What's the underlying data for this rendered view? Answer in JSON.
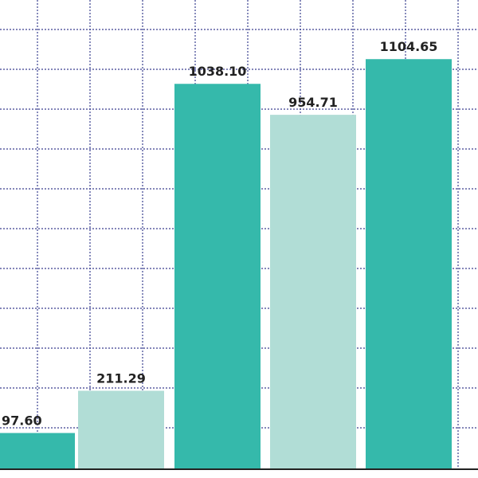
{
  "chart_data": {
    "type": "bar",
    "title": "",
    "xlabel": "",
    "ylabel": "",
    "grid": true,
    "legend": "none",
    "ylim": [
      0,
      1180
    ],
    "bars": [
      {
        "value": 97.6,
        "label": "97.60",
        "color": "#35b9ab"
      },
      {
        "value": 211.29,
        "label": "211.29",
        "color": "#b1ddd6"
      },
      {
        "value": 1038.1,
        "label": "1038.10",
        "color": "#35b9ab"
      },
      {
        "value": 954.71,
        "label": "954.71",
        "color": "#b1ddd6"
      },
      {
        "value": 1104.65,
        "label": "1104.65",
        "color": "#35b9ab"
      }
    ]
  }
}
